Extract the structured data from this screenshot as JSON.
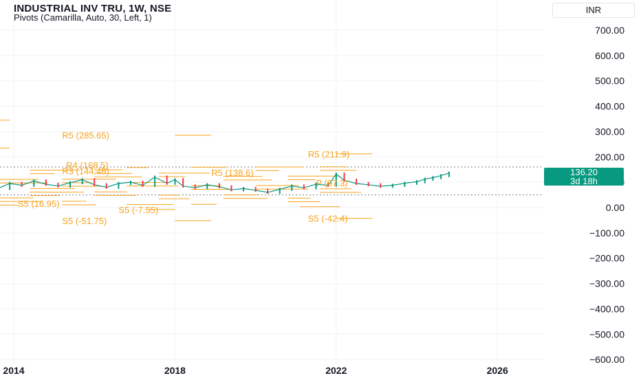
{
  "header": {
    "title": "INDUSTRIAL INV TRU, 1W, NSE",
    "indicator": "Pivots (Camarilla, Auto, 30, Left, 1)"
  },
  "currency_button": "INR",
  "last_price": {
    "value": "136.20",
    "countdown": "3d 18h",
    "color": "#089981"
  },
  "colors": {
    "pivot": "#f7a21b",
    "up": "#089981",
    "down": "#f23645",
    "grid": "#f0f3fa"
  },
  "chart_data": {
    "type": "line",
    "y_ticks": [
      "700.00",
      "600.00",
      "500.00",
      "400.00",
      "300.00",
      "200.00",
      "100.00",
      "0.00",
      "−100.00",
      "−200.00",
      "−300.00",
      "−400.00",
      "−500.00",
      "−600.00"
    ],
    "x_ticks": [
      "2014",
      "2018",
      "2022",
      "2026"
    ],
    "ylim": [
      -600,
      700
    ],
    "pivot_labels": [
      {
        "text": "R5 (285.65)",
        "x": 2015.2,
        "y": 285.65
      },
      {
        "text": "R5 (211.9)",
        "x": 2021.3,
        "y": 211.9
      },
      {
        "text": "S5 (-7.55)",
        "x": 2016.6,
        "y": -7.55
      },
      {
        "text": "S5 (-51.75)",
        "x": 2015.2,
        "y": -51.75
      },
      {
        "text": "S5 (-42.4)",
        "x": 2021.3,
        "y": -42.4
      },
      {
        "text": "S5 (16.95)",
        "x": 2014.1,
        "y": 16.95
      },
      {
        "text": "R4 (168.5)",
        "x": 2015.3,
        "y": 168.5
      },
      {
        "text": "R3 (144.48)",
        "x": 2015.2,
        "y": 144.48
      },
      {
        "text": "R5 (138.6)",
        "x": 2018.9,
        "y": 138.6
      },
      {
        "text": "P (97.3)",
        "x": 2021.5,
        "y": 97.3
      }
    ],
    "pivot_segments": [
      {
        "x0": 2018.0,
        "x1": 2018.9,
        "y": 285.65
      },
      {
        "x0": 2022.0,
        "y": 211.9,
        "x1": 2022.9
      },
      {
        "x0": 2013.6,
        "x1": 2013.9,
        "y": 345
      },
      {
        "x0": 2013.6,
        "x1": 2013.9,
        "y": 235
      },
      {
        "x0": 2018.0,
        "x1": 2018.9,
        "y": -51.75
      },
      {
        "x0": 2022.0,
        "x1": 2022.9,
        "y": -42.4
      },
      {
        "x0": 2017.3,
        "x1": 2018.0,
        "y": -7.55
      },
      {
        "x0": 2021.1,
        "x1": 2022.1,
        "y": 3.5
      }
    ],
    "price_series": {
      "x": [
        2013.6,
        2013.9,
        2014.2,
        2014.5,
        2014.8,
        2015.1,
        2015.4,
        2015.7,
        2016.0,
        2016.3,
        2016.6,
        2016.9,
        2017.2,
        2017.5,
        2017.8,
        2018.0,
        2018.2,
        2018.5,
        2018.8,
        2019.1,
        2019.4,
        2019.7,
        2020.0,
        2020.3,
        2020.6,
        2020.9,
        2021.2,
        2021.5,
        2021.8,
        2022.0,
        2022.2,
        2022.5,
        2022.8,
        2023.1,
        2023.4,
        2023.7,
        2024.0,
        2024.2,
        2024.4,
        2024.6,
        2024.8
      ],
      "y": [
        75,
        95,
        88,
        105,
        92,
        85,
        98,
        110,
        90,
        80,
        95,
        100,
        88,
        120,
        96,
        110,
        85,
        78,
        90,
        82,
        70,
        75,
        68,
        60,
        72,
        85,
        78,
        92,
        88,
        132,
        108,
        95,
        90,
        84,
        88,
        96,
        102,
        112,
        118,
        126,
        136.2
      ]
    },
    "ref_lines": [
      160,
      50
    ]
  }
}
